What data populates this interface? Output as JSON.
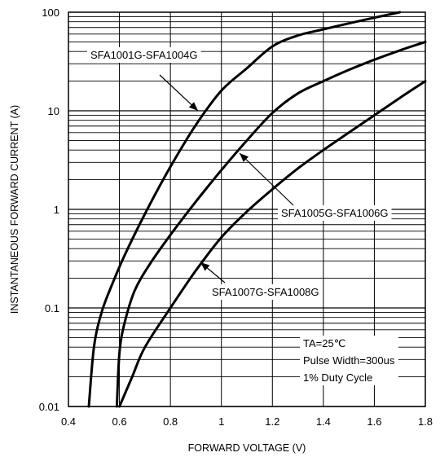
{
  "chart_data": {
    "type": "line",
    "xlabel": "FORWARD VOLTAGE (V)",
    "ylabel": "INSTANTANEOUS FORWARD CURRENT (A)",
    "xlim": [
      0.4,
      1.8
    ],
    "ylim": [
      0.01,
      100
    ],
    "y_scale": "log",
    "grid": true,
    "x_ticks": [
      "0.4",
      "0.6",
      "0.8",
      "1",
      "1.2",
      "1.4",
      "1.6",
      "1.8"
    ],
    "y_ticks": [
      "0.01",
      "0.1",
      "1",
      "10",
      "100"
    ],
    "series": [
      {
        "name": "SFA1001G-SFA1004G",
        "x": [
          0.48,
          0.5,
          0.53,
          0.57,
          0.62,
          0.7,
          0.8,
          0.9,
          1.0,
          1.1,
          1.2,
          1.3,
          1.4,
          1.5,
          1.6,
          1.7
        ],
        "y": [
          0.01,
          0.04,
          0.09,
          0.17,
          0.34,
          0.9,
          2.7,
          7.2,
          16.0,
          27.0,
          45.0,
          58.0,
          67.0,
          77.0,
          88.0,
          100.0
        ]
      },
      {
        "name": "SFA1005G-SFA1006G",
        "x": [
          0.59,
          0.6,
          0.62,
          0.66,
          0.72,
          0.8,
          0.9,
          1.0,
          1.1,
          1.2,
          1.3,
          1.4,
          1.5,
          1.6,
          1.7,
          1.8
        ],
        "y": [
          0.01,
          0.035,
          0.07,
          0.15,
          0.28,
          0.55,
          1.2,
          2.5,
          5.0,
          9.5,
          15.0,
          20.0,
          26.0,
          33.0,
          41.0,
          50.0
        ]
      },
      {
        "name": "SFA1007G-SFA1008G",
        "x": [
          0.6,
          0.65,
          0.7,
          0.8,
          0.9,
          1.0,
          1.1,
          1.2,
          1.3,
          1.4,
          1.5,
          1.6,
          1.7,
          1.8
        ],
        "y": [
          0.01,
          0.02,
          0.04,
          0.1,
          0.24,
          0.52,
          0.95,
          1.6,
          2.6,
          4.0,
          6.0,
          9.0,
          13.5,
          20.0
        ]
      }
    ],
    "annotations": [
      "TA=25℃",
      "Pulse Width=300us",
      "1% Duty Cycle"
    ]
  }
}
